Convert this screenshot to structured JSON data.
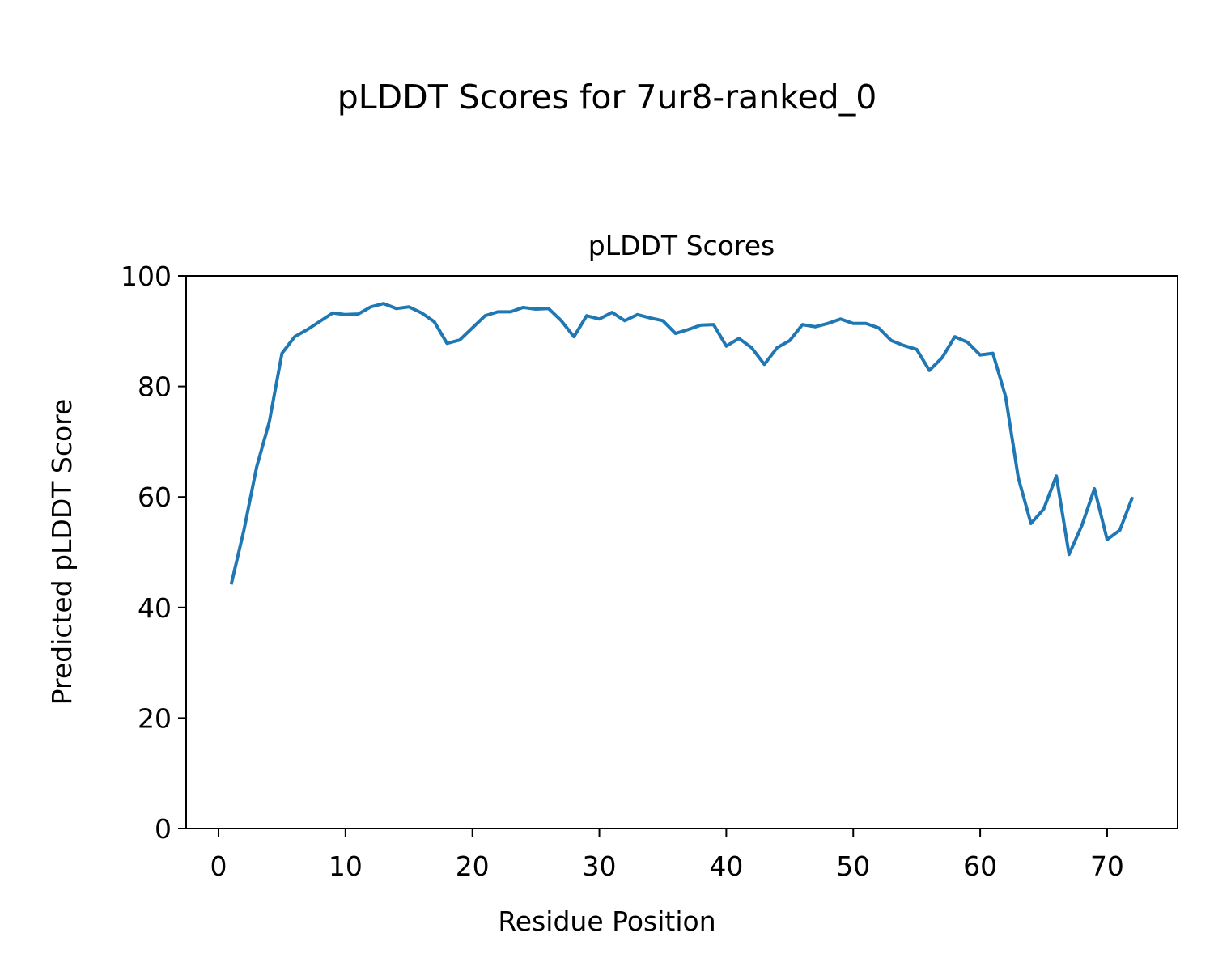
{
  "chart_data": {
    "type": "line",
    "suptitle": "pLDDT Scores for 7ur8-ranked_0",
    "title": "pLDDT Scores",
    "xlabel": "Residue Position",
    "ylabel": "Predicted pLDDT Score",
    "x": [
      1,
      2,
      3,
      4,
      5,
      6,
      7,
      8,
      9,
      10,
      11,
      12,
      13,
      14,
      15,
      16,
      17,
      18,
      19,
      20,
      21,
      22,
      23,
      24,
      25,
      26,
      27,
      28,
      29,
      30,
      31,
      32,
      33,
      34,
      35,
      36,
      37,
      38,
      39,
      40,
      41,
      42,
      43,
      44,
      45,
      46,
      47,
      48,
      49,
      50,
      51,
      52,
      53,
      54,
      55,
      56,
      57,
      58,
      59,
      60,
      61,
      62,
      63,
      64,
      65,
      66,
      67,
      68,
      69,
      70,
      71,
      72
    ],
    "series": [
      {
        "color": "#1f77b4",
        "values": [
          44.2,
          54,
          65.4,
          73.6,
          86,
          89,
          90.3,
          91.8,
          93.3,
          93,
          93.1,
          94.4,
          95,
          94.1,
          94.4,
          93.3,
          91.7,
          87.8,
          88.4,
          90.6,
          92.8,
          93.5,
          93.5,
          94.3,
          94,
          94.1,
          91.9,
          89,
          92.8,
          92.2,
          93.4,
          91.9,
          93,
          92.4,
          91.9,
          89.6,
          90.3,
          91.1,
          91.2,
          87.3,
          88.7,
          87,
          84,
          87,
          88.3,
          91.2,
          90.8,
          91.4,
          92.2,
          91.4,
          91.4,
          90.6,
          88.3,
          87.4,
          86.7,
          82.9,
          85.2,
          89,
          88,
          85.7,
          86,
          78.2,
          63.5,
          55.2,
          57.8,
          63.8,
          49.6,
          54.8,
          61.5,
          52.3,
          54,
          60
        ]
      }
    ],
    "xlim": [
      -2.55,
      75.55
    ],
    "xticks": [
      0,
      10,
      20,
      30,
      40,
      50,
      60,
      70
    ],
    "ylim": [
      0,
      100
    ],
    "yticks": [
      0,
      20,
      40,
      60,
      80,
      100
    ]
  }
}
